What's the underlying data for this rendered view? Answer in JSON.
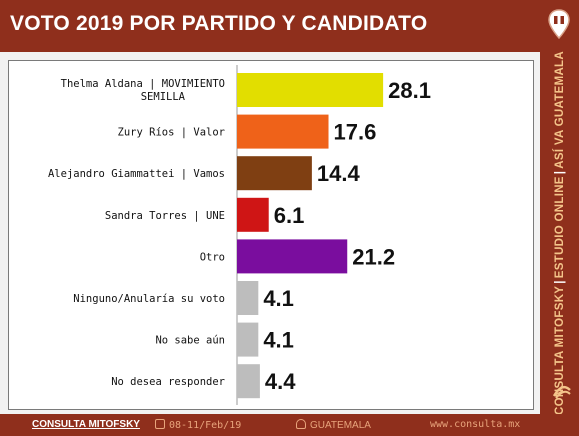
{
  "header": {
    "title": "VOTO 2019 POR PARTIDO Y CANDIDATO"
  },
  "sidebar": {
    "part1": "CONSULTA MITOFSKY",
    "sep1": "|",
    "part2": "ESTUDIO ONLINE",
    "sep2": "|",
    "part3": "ASÍ VA GUATEMALA"
  },
  "footer": {
    "brand": "CONSULTA MITOFSKY",
    "date": "08-11/Feb/19",
    "place": "GUATEMALA",
    "url": "www.consulta.mx"
  },
  "colors": {
    "brand": "#8f2f1c",
    "frame": "#7a7a7a"
  },
  "chart_data": {
    "type": "bar",
    "orientation": "horizontal",
    "title": "VOTO 2019 POR PARTIDO Y CANDIDATO",
    "categories": [
      "Thelma Aldana | MOVIMIENTO SEMILLA",
      "Zury Ríos | Valor",
      "Alejandro Giammattei | Vamos",
      "Sandra Torres | UNE",
      "Otro",
      "Ninguno/Anularía su voto",
      "No sabe aún",
      "No desea responder"
    ],
    "values": [
      28.1,
      17.6,
      14.4,
      6.1,
      21.2,
      4.1,
      4.1,
      4.4
    ],
    "labels": [
      "28.1",
      "17.6",
      "14.4",
      "6.1",
      "21.2",
      "4.1",
      "4.1",
      "4.4"
    ],
    "colors": [
      "#e2de00",
      "#ef6219",
      "#7f3f12",
      "#cf1515",
      "#7a0d9e",
      "#bdbdbd",
      "#bdbdbd",
      "#bdbdbd"
    ],
    "xlim": [
      0,
      55
    ],
    "grid": false,
    "legend": "none"
  }
}
